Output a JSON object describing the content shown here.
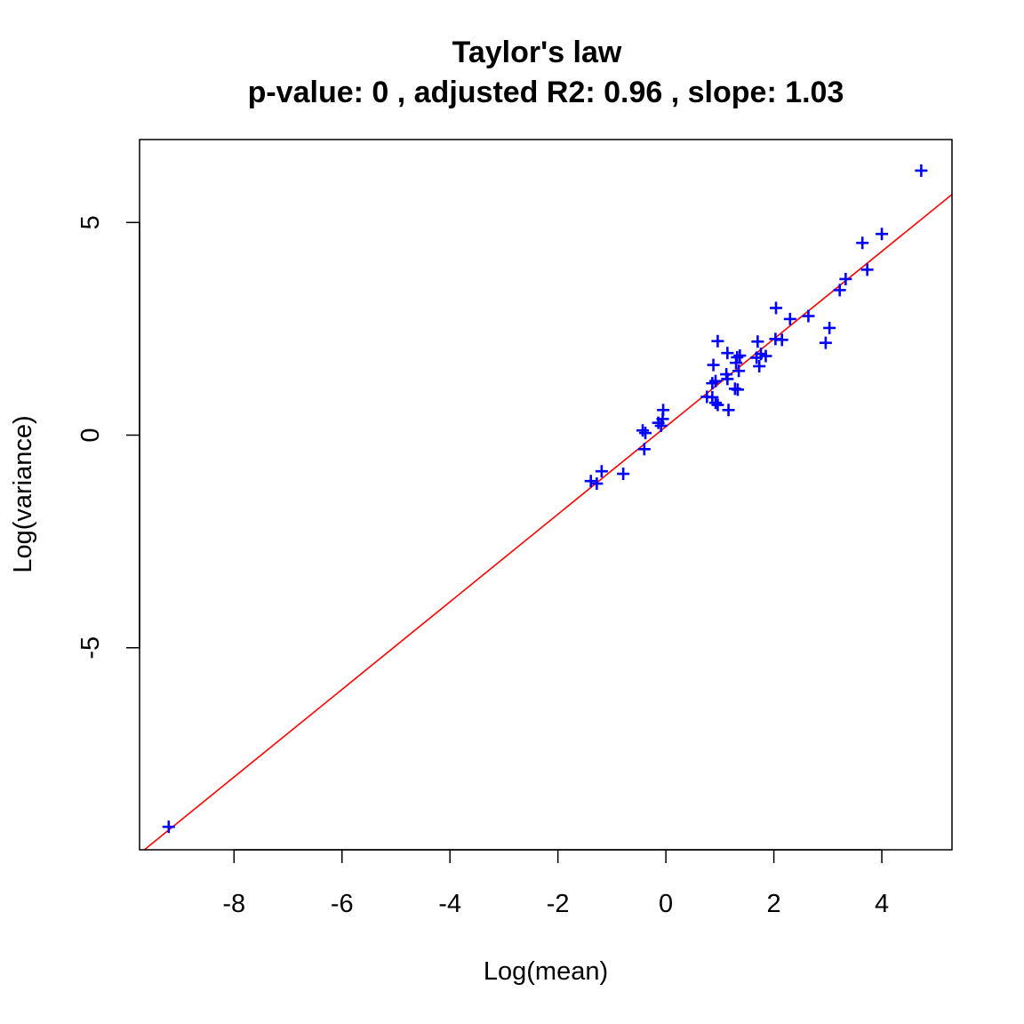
{
  "chart_data": {
    "type": "scatter",
    "title": "Taylor's law",
    "subtitle": "p-value: 0 , adjusted R2: 0.96 , slope: 1.03",
    "xlabel": "Log(mean)",
    "ylabel": "Log(variance)",
    "xlim": [
      -9.75,
      5.3
    ],
    "ylim": [
      -9.75,
      6.95
    ],
    "x_ticks": [
      -8,
      -6,
      -4,
      -2,
      0,
      2,
      4
    ],
    "x_tick_labels": [
      "-8",
      "-6",
      "-4",
      "-2",
      "0",
      "2",
      "4"
    ],
    "y_ticks": [
      -5,
      0,
      5
    ],
    "y_tick_labels": [
      "-5",
      "0",
      "5"
    ],
    "grid": false,
    "legend": "none",
    "point_color": "#0000FF",
    "line_color": "#FF0000",
    "point_marker": "plus",
    "fit_line": {
      "slope": 1.03,
      "intercept": 0.2
    },
    "points": [
      {
        "x": -9.21,
        "y": -9.21
      },
      {
        "x": 4.73,
        "y": 6.22
      },
      {
        "x": 4.0,
        "y": 4.73
      },
      {
        "x": 3.64,
        "y": 4.52
      },
      {
        "x": 3.73,
        "y": 3.89
      },
      {
        "x": 3.33,
        "y": 3.67
      },
      {
        "x": 3.22,
        "y": 3.41
      },
      {
        "x": 3.03,
        "y": 2.52
      },
      {
        "x": 2.96,
        "y": 2.17
      },
      {
        "x": 2.64,
        "y": 2.8
      },
      {
        "x": 2.3,
        "y": 2.73
      },
      {
        "x": 2.04,
        "y": 2.99
      },
      {
        "x": 2.03,
        "y": 2.26
      },
      {
        "x": 2.15,
        "y": 2.24
      },
      {
        "x": 1.85,
        "y": 1.86
      },
      {
        "x": 1.76,
        "y": 1.91
      },
      {
        "x": 1.7,
        "y": 2.2
      },
      {
        "x": 1.68,
        "y": 1.82
      },
      {
        "x": 1.73,
        "y": 1.62
      },
      {
        "x": 1.37,
        "y": 1.87
      },
      {
        "x": 1.32,
        "y": 1.83
      },
      {
        "x": 1.3,
        "y": 1.7
      },
      {
        "x": 1.14,
        "y": 1.93
      },
      {
        "x": 0.96,
        "y": 2.21
      },
      {
        "x": 0.88,
        "y": 1.65
      },
      {
        "x": 1.35,
        "y": 1.51
      },
      {
        "x": 1.12,
        "y": 1.43
      },
      {
        "x": 1.14,
        "y": 1.32
      },
      {
        "x": 0.92,
        "y": 1.27
      },
      {
        "x": 0.86,
        "y": 1.22
      },
      {
        "x": 1.33,
        "y": 1.07
      },
      {
        "x": 1.28,
        "y": 1.09
      },
      {
        "x": 0.86,
        "y": 0.89
      },
      {
        "x": 0.76,
        "y": 0.9
      },
      {
        "x": 0.92,
        "y": 0.76
      },
      {
        "x": 0.96,
        "y": 0.71
      },
      {
        "x": 1.16,
        "y": 0.59
      },
      {
        "x": -0.05,
        "y": 0.59
      },
      {
        "x": -0.06,
        "y": 0.38
      },
      {
        "x": -0.14,
        "y": 0.29
      },
      {
        "x": -0.09,
        "y": 0.22
      },
      {
        "x": -0.43,
        "y": 0.11
      },
      {
        "x": -0.38,
        "y": 0.05
      },
      {
        "x": -0.4,
        "y": -0.33
      },
      {
        "x": -0.79,
        "y": -0.91
      },
      {
        "x": -1.19,
        "y": -0.85
      },
      {
        "x": -1.39,
        "y": -1.08
      },
      {
        "x": -1.28,
        "y": -1.14
      }
    ]
  }
}
